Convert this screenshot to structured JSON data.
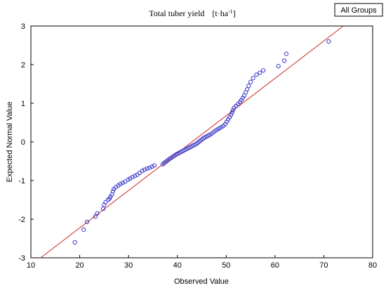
{
  "chart_data": {
    "type": "scatter",
    "title": "Total tuber yield",
    "title_unit": "[t·ha",
    "title_unit_sup": "-1",
    "title_unit_close": "]",
    "xlabel": "Observed Value",
    "ylabel": "Expected Normal Value",
    "legend": "All Groups",
    "legend_position": "top-right",
    "xlim": [
      10,
      80
    ],
    "ylim": [
      -3,
      3
    ],
    "xticks": [
      10,
      20,
      30,
      40,
      50,
      60,
      70,
      80
    ],
    "yticks": [
      -3,
      -2,
      -1,
      0,
      1,
      2,
      3
    ],
    "grid": false,
    "point_color": "#3a3ac8",
    "line_color": "#cc2222",
    "reference_line": {
      "x": [
        12,
        74
      ],
      "y": [
        -3,
        3
      ]
    },
    "points": [
      [
        19,
        -2.6
      ],
      [
        20.8,
        -2.27
      ],
      [
        21.5,
        -2.07
      ],
      [
        23.2,
        -1.93
      ],
      [
        23.6,
        -1.85
      ],
      [
        24.8,
        -1.73
      ],
      [
        25.0,
        -1.63
      ],
      [
        25.3,
        -1.56
      ],
      [
        25.8,
        -1.5
      ],
      [
        26.1,
        -1.47
      ],
      [
        26.3,
        -1.42
      ],
      [
        26.6,
        -1.36
      ],
      [
        26.8,
        -1.28
      ],
      [
        27.0,
        -1.22
      ],
      [
        27.4,
        -1.17
      ],
      [
        27.9,
        -1.13
      ],
      [
        28.3,
        -1.09
      ],
      [
        28.8,
        -1.06
      ],
      [
        29.3,
        -1.03
      ],
      [
        29.9,
        -0.98
      ],
      [
        30.3,
        -0.95
      ],
      [
        30.8,
        -0.91
      ],
      [
        31.3,
        -0.88
      ],
      [
        31.8,
        -0.85
      ],
      [
        32.3,
        -0.8
      ],
      [
        32.8,
        -0.75
      ],
      [
        33.3,
        -0.72
      ],
      [
        33.8,
        -0.69
      ],
      [
        34.3,
        -0.67
      ],
      [
        34.8,
        -0.64
      ],
      [
        35.3,
        -0.61
      ],
      [
        37.0,
        -0.58
      ],
      [
        37.3,
        -0.55
      ],
      [
        37.6,
        -0.52
      ],
      [
        37.9,
        -0.49
      ],
      [
        38.2,
        -0.46
      ],
      [
        38.5,
        -0.43
      ],
      [
        38.8,
        -0.41
      ],
      [
        39.1,
        -0.38
      ],
      [
        39.4,
        -0.36
      ],
      [
        39.7,
        -0.33
      ],
      [
        40.0,
        -0.31
      ],
      [
        40.3,
        -0.29
      ],
      [
        40.6,
        -0.27
      ],
      [
        40.9,
        -0.25
      ],
      [
        41.2,
        -0.23
      ],
      [
        41.5,
        -0.21
      ],
      [
        41.8,
        -0.19
      ],
      [
        42.1,
        -0.17
      ],
      [
        42.4,
        -0.15
      ],
      [
        42.7,
        -0.13
      ],
      [
        43.0,
        -0.11
      ],
      [
        43.3,
        -0.09
      ],
      [
        43.6,
        -0.07
      ],
      [
        43.9,
        -0.05
      ],
      [
        44.2,
        -0.02
      ],
      [
        44.5,
        0.01
      ],
      [
        44.8,
        0.04
      ],
      [
        45.1,
        0.07
      ],
      [
        45.4,
        0.1
      ],
      [
        45.7,
        0.12
      ],
      [
        46.0,
        0.14
      ],
      [
        46.3,
        0.16
      ],
      [
        46.6,
        0.18
      ],
      [
        47.0,
        0.21
      ],
      [
        47.4,
        0.25
      ],
      [
        47.8,
        0.29
      ],
      [
        48.2,
        0.32
      ],
      [
        48.6,
        0.35
      ],
      [
        49.0,
        0.38
      ],
      [
        49.4,
        0.41
      ],
      [
        49.8,
        0.46
      ],
      [
        50.1,
        0.52
      ],
      [
        50.4,
        0.58
      ],
      [
        50.7,
        0.64
      ],
      [
        51.0,
        0.7
      ],
      [
        51.2,
        0.76
      ],
      [
        51.4,
        0.82
      ],
      [
        51.6,
        0.88
      ],
      [
        52.0,
        0.93
      ],
      [
        52.4,
        0.98
      ],
      [
        52.8,
        1.03
      ],
      [
        53.1,
        1.08
      ],
      [
        53.4,
        1.14
      ],
      [
        53.7,
        1.2
      ],
      [
        54.0,
        1.28
      ],
      [
        54.3,
        1.36
      ],
      [
        54.6,
        1.45
      ],
      [
        55.0,
        1.55
      ],
      [
        55.5,
        1.65
      ],
      [
        56.2,
        1.74
      ],
      [
        56.9,
        1.79
      ],
      [
        57.6,
        1.85
      ],
      [
        60.7,
        1.96
      ],
      [
        61.9,
        2.1
      ],
      [
        62.3,
        2.28
      ],
      [
        71.0,
        2.6
      ]
    ]
  }
}
